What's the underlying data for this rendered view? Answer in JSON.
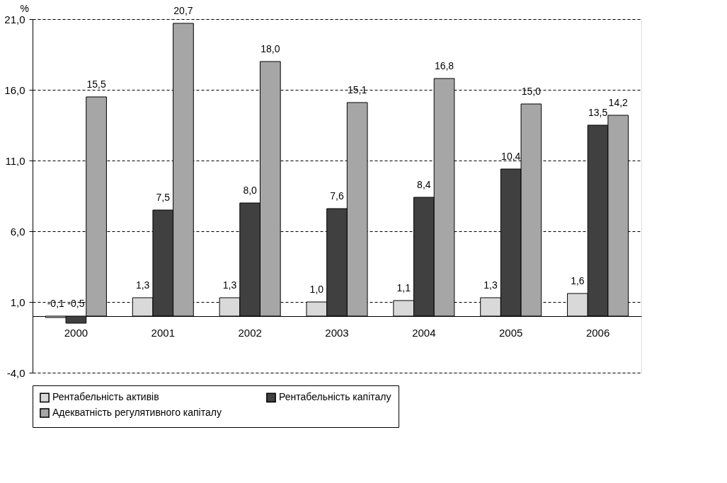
{
  "chart_data": {
    "type": "bar",
    "ylabel": "%",
    "categories": [
      "2000",
      "2001",
      "2002",
      "2003",
      "2004",
      "2005",
      "2006"
    ],
    "series": [
      {
        "name": "Рентабельність активів",
        "color": "#d9d9d9",
        "values": [
          -0.1,
          1.3,
          1.3,
          1.0,
          1.1,
          1.3,
          1.6
        ],
        "value_labels": [
          "-0,1",
          "1,3",
          "1,3",
          "1,0",
          "1,1",
          "1,3",
          "1,6"
        ]
      },
      {
        "name": "Рентабельність капіталу",
        "color": "#404040",
        "values": [
          -0.5,
          7.5,
          8.0,
          7.6,
          8.4,
          10.4,
          13.5
        ],
        "value_labels": [
          "-0,5",
          "7,5",
          "8,0",
          "7,6",
          "8,4",
          "10,4",
          "13,5"
        ]
      },
      {
        "name": "Адекватність регулятивного капіталу",
        "color": "#a6a6a6",
        "values": [
          15.5,
          20.7,
          18.0,
          15.1,
          16.8,
          15.0,
          14.2
        ],
        "value_labels": [
          "15,5",
          "20,7",
          "18,0",
          "15,1",
          "16,8",
          "15,0",
          "14,2"
        ]
      }
    ],
    "ylim": [
      -4,
      21
    ],
    "yticks": [
      {
        "value": -4,
        "label": "-4,0"
      },
      {
        "value": 1,
        "label": "1,0"
      },
      {
        "value": 6,
        "label": "6,0"
      },
      {
        "value": 11,
        "label": "11,0"
      },
      {
        "value": 16,
        "label": "16,0"
      },
      {
        "value": 21,
        "label": "21,0"
      }
    ],
    "grid": "y",
    "legend": "bottom"
  }
}
